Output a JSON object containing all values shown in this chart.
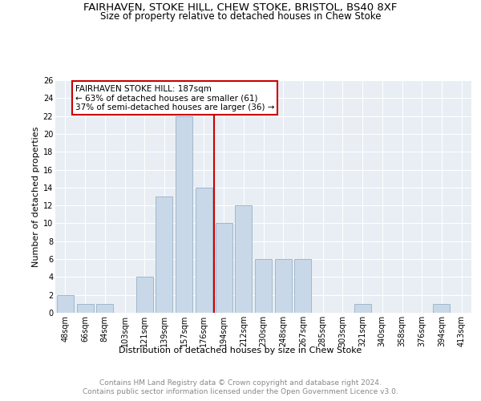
{
  "title_line1": "FAIRHAVEN, STOKE HILL, CHEW STOKE, BRISTOL, BS40 8XF",
  "title_line2": "Size of property relative to detached houses in Chew Stoke",
  "xlabel": "Distribution of detached houses by size in Chew Stoke",
  "ylabel": "Number of detached properties",
  "footer_line1": "Contains HM Land Registry data © Crown copyright and database right 2024.",
  "footer_line2": "Contains public sector information licensed under the Open Government Licence v3.0.",
  "categories": [
    "48sqm",
    "66sqm",
    "84sqm",
    "103sqm",
    "121sqm",
    "139sqm",
    "157sqm",
    "176sqm",
    "194sqm",
    "212sqm",
    "230sqm",
    "248sqm",
    "267sqm",
    "285sqm",
    "303sqm",
    "321sqm",
    "340sqm",
    "358sqm",
    "376sqm",
    "394sqm",
    "413sqm"
  ],
  "values": [
    2,
    1,
    1,
    0,
    4,
    13,
    22,
    14,
    10,
    12,
    6,
    6,
    6,
    0,
    0,
    1,
    0,
    0,
    0,
    1,
    0
  ],
  "bar_color": "#c8d8e8",
  "bar_edge_color": "#a0b8cc",
  "vline_x": 8.0,
  "vline_color": "#cc0000",
  "annotation_text": "FAIRHAVEN STOKE HILL: 187sqm\n← 63% of detached houses are smaller (61)\n37% of semi-detached houses are larger (36) →",
  "annotation_box_color": "#ffffff",
  "annotation_box_edge": "#cc0000",
  "ylim": [
    0,
    26
  ],
  "yticks": [
    0,
    2,
    4,
    6,
    8,
    10,
    12,
    14,
    16,
    18,
    20,
    22,
    24,
    26
  ],
  "plot_background": "#e8eef4",
  "title_fontsize": 9.5,
  "subtitle_fontsize": 8.5,
  "axis_label_fontsize": 8,
  "tick_fontsize": 7,
  "footer_fontsize": 6.5,
  "annotation_fontsize": 7.5
}
